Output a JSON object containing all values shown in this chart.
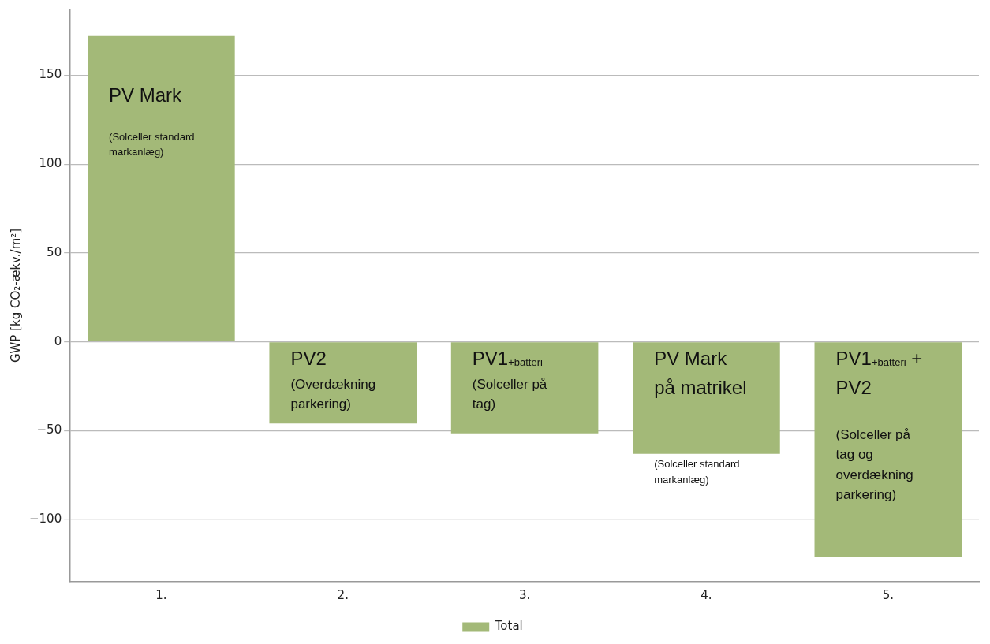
{
  "chart_data": {
    "type": "bar",
    "ylabel": "GWP [kg CO₂-ækv./m²]",
    "categories": [
      "1.",
      "2.",
      "3.",
      "4.",
      "5."
    ],
    "series": [
      {
        "name": "Total",
        "color": "#a3b978",
        "values": [
          172,
          -46,
          -51.5,
          -63,
          -121
        ]
      }
    ],
    "ylim": [
      -135,
      187
    ],
    "yticks": [
      -100,
      -50,
      0,
      50,
      100,
      150
    ],
    "grid": "y",
    "legend": "bottom",
    "annotations": [
      "PV Mark",
      "(Solceller standard markanlæg)",
      "PV2",
      "(Overdækning parkering)",
      "PV1$_{+batteri}$",
      "(Solceller på tag)",
      "PV Mark på matrikel",
      "(Solceller standard markanlæg)",
      "PV1$_{+batteri}$ + PV2",
      "(Solceller på tag og overdækning parkering)"
    ]
  }
}
